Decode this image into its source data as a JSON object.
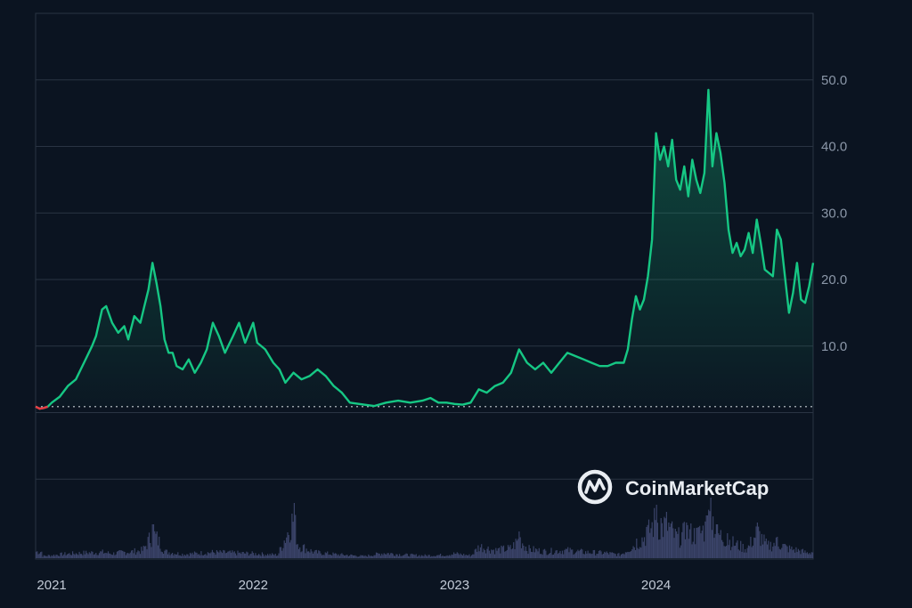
{
  "watermark": {
    "text": "CoinMarketCap",
    "icon": "coinmarketcap-logo-icon"
  },
  "colors": {
    "background": "#0b1421",
    "grid": "#2a3443",
    "up_line": "#16c784",
    "down_line": "#ea3943",
    "baseline": "#c9cdd4",
    "volume": "#3a4368"
  },
  "chart_data": {
    "type": "area",
    "title": "",
    "xlabel": "",
    "ylabel": "",
    "x_ticks": [
      "2021",
      "2022",
      "2023",
      "2024"
    ],
    "y_ticks": [
      "10.0",
      "20.0",
      "30.0",
      "40.0",
      "50.0"
    ],
    "ylim": [
      -22,
      60
    ],
    "y_axis_position": "right",
    "grid": true,
    "legend": "none",
    "baseline_value": 0.9,
    "series": [
      {
        "values": [
          [
            2020.92,
            0.9
          ],
          [
            2020.94,
            0.6
          ],
          [
            2020.96,
            0.7
          ],
          [
            2020.98,
            0.9
          ],
          [
            2021.0,
            1.5
          ],
          [
            2021.04,
            2.4
          ],
          [
            2021.08,
            4.0
          ],
          [
            2021.12,
            5.0
          ],
          [
            2021.16,
            7.5
          ],
          [
            2021.2,
            10.0
          ],
          [
            2021.22,
            11.5
          ],
          [
            2021.25,
            15.5
          ],
          [
            2021.27,
            16.0
          ],
          [
            2021.3,
            13.5
          ],
          [
            2021.33,
            12.0
          ],
          [
            2021.36,
            13.0
          ],
          [
            2021.38,
            11.0
          ],
          [
            2021.41,
            14.5
          ],
          [
            2021.44,
            13.5
          ],
          [
            2021.46,
            16.0
          ],
          [
            2021.48,
            18.5
          ],
          [
            2021.5,
            22.5
          ],
          [
            2021.52,
            19.5
          ],
          [
            2021.54,
            16.0
          ],
          [
            2021.56,
            11.0
          ],
          [
            2021.58,
            9.0
          ],
          [
            2021.6,
            9.0
          ],
          [
            2021.62,
            7.0
          ],
          [
            2021.65,
            6.5
          ],
          [
            2021.68,
            8.0
          ],
          [
            2021.71,
            6.0
          ],
          [
            2021.74,
            7.5
          ],
          [
            2021.77,
            9.5
          ],
          [
            2021.8,
            13.5
          ],
          [
            2021.83,
            11.5
          ],
          [
            2021.86,
            9.0
          ],
          [
            2021.9,
            11.5
          ],
          [
            2021.93,
            13.5
          ],
          [
            2021.96,
            10.5
          ],
          [
            2022.0,
            13.5
          ],
          [
            2022.02,
            10.5
          ],
          [
            2022.06,
            9.5
          ],
          [
            2022.1,
            7.5
          ],
          [
            2022.13,
            6.5
          ],
          [
            2022.16,
            4.5
          ],
          [
            2022.2,
            6.0
          ],
          [
            2022.24,
            5.0
          ],
          [
            2022.28,
            5.5
          ],
          [
            2022.32,
            6.5
          ],
          [
            2022.36,
            5.5
          ],
          [
            2022.4,
            4.0
          ],
          [
            2022.44,
            3.0
          ],
          [
            2022.48,
            1.5
          ],
          [
            2022.55,
            1.2
          ],
          [
            2022.6,
            1.0
          ],
          [
            2022.66,
            1.5
          ],
          [
            2022.72,
            1.8
          ],
          [
            2022.78,
            1.5
          ],
          [
            2022.84,
            1.8
          ],
          [
            2022.88,
            2.2
          ],
          [
            2022.92,
            1.5
          ],
          [
            2022.96,
            1.5
          ],
          [
            2023.0,
            1.3
          ],
          [
            2023.04,
            1.2
          ],
          [
            2023.08,
            1.5
          ],
          [
            2023.12,
            3.5
          ],
          [
            2023.16,
            3.0
          ],
          [
            2023.2,
            4.0
          ],
          [
            2023.24,
            4.5
          ],
          [
            2023.28,
            6.0
          ],
          [
            2023.32,
            9.5
          ],
          [
            2023.36,
            7.5
          ],
          [
            2023.4,
            6.5
          ],
          [
            2023.44,
            7.5
          ],
          [
            2023.48,
            6.0
          ],
          [
            2023.52,
            7.5
          ],
          [
            2023.56,
            9.0
          ],
          [
            2023.6,
            8.5
          ],
          [
            2023.64,
            8.0
          ],
          [
            2023.68,
            7.5
          ],
          [
            2023.72,
            7.0
          ],
          [
            2023.76,
            7.0
          ],
          [
            2023.8,
            7.5
          ],
          [
            2023.84,
            7.5
          ],
          [
            2023.86,
            9.5
          ],
          [
            2023.88,
            14.0
          ],
          [
            2023.9,
            17.5
          ],
          [
            2023.92,
            15.5
          ],
          [
            2023.94,
            17.0
          ],
          [
            2023.96,
            20.5
          ],
          [
            2023.98,
            26.0
          ],
          [
            2024.0,
            42.0
          ],
          [
            2024.02,
            38.0
          ],
          [
            2024.04,
            40.0
          ],
          [
            2024.06,
            37.0
          ],
          [
            2024.08,
            41.0
          ],
          [
            2024.1,
            35.0
          ],
          [
            2024.12,
            33.5
          ],
          [
            2024.14,
            37.0
          ],
          [
            2024.16,
            32.5
          ],
          [
            2024.18,
            38.0
          ],
          [
            2024.2,
            35.0
          ],
          [
            2024.22,
            33.0
          ],
          [
            2024.24,
            36.0
          ],
          [
            2024.26,
            48.5
          ],
          [
            2024.28,
            37.0
          ],
          [
            2024.3,
            42.0
          ],
          [
            2024.32,
            39.0
          ],
          [
            2024.34,
            34.5
          ],
          [
            2024.36,
            27.5
          ],
          [
            2024.38,
            24.0
          ],
          [
            2024.4,
            25.5
          ],
          [
            2024.42,
            23.5
          ],
          [
            2024.44,
            24.5
          ],
          [
            2024.46,
            27.0
          ],
          [
            2024.48,
            24.0
          ],
          [
            2024.5,
            29.0
          ],
          [
            2024.52,
            25.5
          ],
          [
            2024.54,
            21.5
          ],
          [
            2024.56,
            21.0
          ],
          [
            2024.58,
            20.5
          ],
          [
            2024.6,
            27.5
          ],
          [
            2024.62,
            26.0
          ],
          [
            2024.64,
            20.5
          ],
          [
            2024.66,
            15.0
          ],
          [
            2024.68,
            18.0
          ],
          [
            2024.7,
            22.5
          ],
          [
            2024.72,
            17.0
          ],
          [
            2024.74,
            16.5
          ],
          [
            2024.76,
            19.0
          ],
          [
            2024.78,
            22.5
          ]
        ]
      }
    ],
    "volume": [
      [
        2020.95,
        3
      ],
      [
        2021.05,
        6
      ],
      [
        2021.15,
        8
      ],
      [
        2021.25,
        9
      ],
      [
        2021.3,
        7
      ],
      [
        2021.35,
        9
      ],
      [
        2021.4,
        10
      ],
      [
        2021.45,
        12
      ],
      [
        2021.5,
        38
      ],
      [
        2021.52,
        30
      ],
      [
        2021.56,
        10
      ],
      [
        2021.65,
        6
      ],
      [
        2021.8,
        9
      ],
      [
        2021.9,
        8
      ],
      [
        2022.0,
        7
      ],
      [
        2022.05,
        6
      ],
      [
        2022.12,
        5
      ],
      [
        2022.2,
        62
      ],
      [
        2022.22,
        20
      ],
      [
        2022.3,
        9
      ],
      [
        2022.4,
        6
      ],
      [
        2022.55,
        3
      ],
      [
        2022.65,
        8
      ],
      [
        2022.75,
        5
      ],
      [
        2022.85,
        4
      ],
      [
        2022.95,
        5
      ],
      [
        2023.0,
        7
      ],
      [
        2023.08,
        4
      ],
      [
        2023.12,
        18
      ],
      [
        2023.2,
        12
      ],
      [
        2023.28,
        15
      ],
      [
        2023.32,
        30
      ],
      [
        2023.36,
        14
      ],
      [
        2023.45,
        10
      ],
      [
        2023.55,
        12
      ],
      [
        2023.65,
        9
      ],
      [
        2023.75,
        8
      ],
      [
        2023.82,
        5
      ],
      [
        2023.86,
        14
      ],
      [
        2023.9,
        22
      ],
      [
        2023.95,
        35
      ],
      [
        2024.0,
        60
      ],
      [
        2024.02,
        45
      ],
      [
        2024.05,
        52
      ],
      [
        2024.1,
        30
      ],
      [
        2024.15,
        40
      ],
      [
        2024.2,
        34
      ],
      [
        2024.25,
        48
      ],
      [
        2024.27,
        68
      ],
      [
        2024.3,
        38
      ],
      [
        2024.35,
        28
      ],
      [
        2024.4,
        20
      ],
      [
        2024.45,
        14
      ],
      [
        2024.5,
        40
      ],
      [
        2024.55,
        18
      ],
      [
        2024.6,
        24
      ],
      [
        2024.65,
        15
      ],
      [
        2024.7,
        12
      ],
      [
        2024.75,
        8
      ],
      [
        2024.78,
        10
      ]
    ]
  }
}
